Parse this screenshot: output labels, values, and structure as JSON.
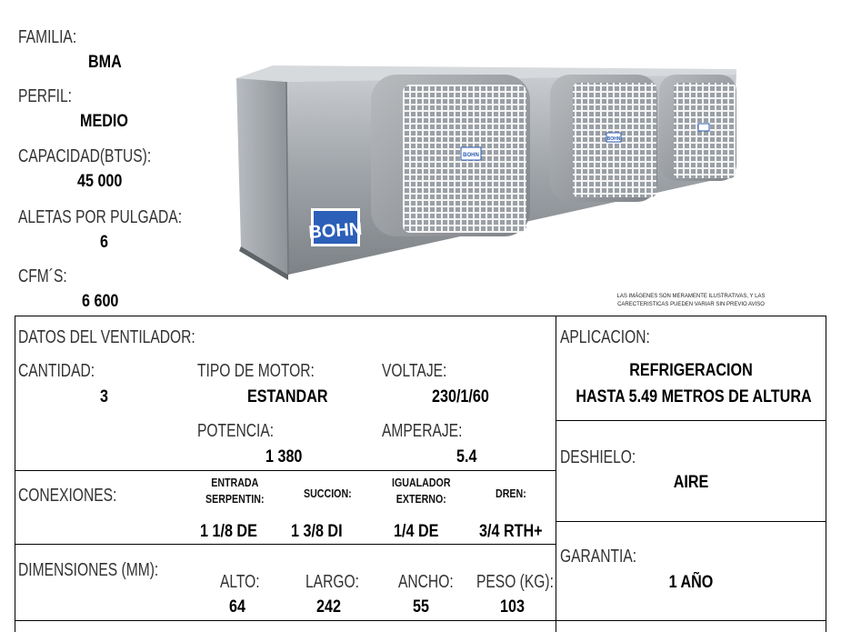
{
  "specs": {
    "familia_label": "FAMILIA:",
    "familia_value": "BMA",
    "perfil_label": "PERFIL:",
    "perfil_value": "MEDIO",
    "capacidad_label": "CAPACIDAD(BTUS):",
    "capacidad_value": "45 000",
    "aletas_label": "ALETAS POR PULGADA:",
    "aletas_value": "6",
    "cfm_label": "CFM´S:",
    "cfm_value": "6 600"
  },
  "image": {
    "brand": "BOHN",
    "fan_count": 3,
    "disclaimer_line1": "LAS IMÁGENES SON MERAMENTE ILUSTRATIVAS, Y LAS",
    "disclaimer_line2": "CARECTERISTICAS PUEDEN VARIAR SIN PREVIO AVISO"
  },
  "ventilador": {
    "title": "DATOS DEL VENTILADOR:",
    "cantidad_label": "CANTIDAD:",
    "cantidad_value": "3",
    "motor_label": "TIPO DE MOTOR:",
    "motor_value": "ESTANDAR",
    "voltaje_label": "VOLTAJE:",
    "voltaje_value": "230/1/60",
    "potencia_label": "POTENCIA:",
    "potencia_value": "1 380",
    "amperaje_label": "AMPERAJE:",
    "amperaje_value": "5.4"
  },
  "aplicacion": {
    "label": "APLICACION:",
    "value_line1": "REFRIGERACION",
    "value_line2": "HASTA 5.49 METROS DE  ALTURA"
  },
  "deshielo": {
    "label": "DESHIELO:",
    "value": "AIRE"
  },
  "conexiones": {
    "label": "CONEXIONES:",
    "entrada_label_1": "ENTRADA",
    "entrada_label_2": "SERPENTIN:",
    "succion_label": "SUCCION:",
    "igualador_label_1": "IGUALADOR",
    "igualador_label_2": "EXTERNO:",
    "dren_label": "DREN:",
    "entrada_value": "1 1/8 DE",
    "succion_value": "1 3/8 DI",
    "igualador_value": "1/4 DE",
    "dren_value": "3/4 RTH+"
  },
  "dimensiones": {
    "label": "DIMENSIONES (MM):",
    "alto_label": "ALTO:",
    "alto_value": "64",
    "largo_label": "LARGO:",
    "largo_value": "242",
    "ancho_label": "ANCHO:",
    "ancho_value": "55",
    "peso_label": "PESO (KG):",
    "peso_value": "103"
  },
  "garantia": {
    "label": "GARANTIA:",
    "value": "1 AÑO"
  }
}
